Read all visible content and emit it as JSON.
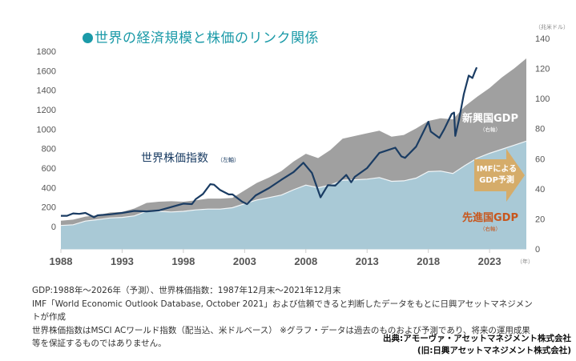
{
  "title": "世界の経済規模と株価のリンク関係",
  "colors": {
    "title": "#1b9aa8",
    "advanced_gdp": "#a9c9d6",
    "emerging_gdp": "#a0a0a0",
    "stock_line": "#1a3c63",
    "forecast_arrow": "#d9a95e",
    "advanced_label": "#c8561c"
  },
  "chart_data": {
    "type": "area",
    "title": "世界の経済規模と株価のリンク関係",
    "xlabel": "（年）",
    "ylabel_left": "",
    "ylabel_right": "（兆米ドル）",
    "x_ticks": [
      "1988",
      "1993",
      "1998",
      "2003",
      "2008",
      "2013",
      "2018",
      "2023"
    ],
    "x_range": [
      1988,
      2026
    ],
    "y_left_ticks": [
      "0",
      "200",
      "400",
      "600",
      "800",
      "1000",
      "1200",
      "1400",
      "1600",
      "1800"
    ],
    "y_left_range": [
      0,
      1800
    ],
    "y_right_ticks": [
      "0",
      "20",
      "40",
      "60",
      "80",
      "100",
      "120",
      "140"
    ],
    "y_right_range": [
      0,
      140
    ],
    "grid": false,
    "gdp_years": [
      1988,
      1989,
      1990,
      1991,
      1992,
      1993,
      1994,
      1995,
      1996,
      1997,
      1998,
      1999,
      2000,
      2001,
      2002,
      2003,
      2004,
      2005,
      2006,
      2007,
      2008,
      2009,
      2010,
      2011,
      2012,
      2013,
      2014,
      2015,
      2016,
      2017,
      2018,
      2019,
      2020,
      2021,
      2022,
      2023,
      2024,
      2025,
      2026
    ],
    "series": [
      {
        "name": "先進国GDP",
        "axis": "right",
        "kind": "stacked-area",
        "values": [
          15.6,
          16.1,
          18.5,
          19.5,
          20.6,
          21.0,
          22.0,
          25.0,
          25.0,
          24.6,
          25.0,
          26.0,
          26.5,
          26.5,
          27.4,
          30.0,
          32.6,
          34.2,
          35.8,
          39.4,
          42.5,
          40.7,
          42.5,
          45.7,
          46.0,
          46.4,
          47.5,
          45.0,
          45.3,
          47.1,
          51.4,
          51.8,
          50.2,
          55.6,
          60.4,
          63.6,
          66.3,
          69.0,
          71.7
        ]
      },
      {
        "name": "新興国GDP",
        "axis": "right",
        "kind": "stacked-area",
        "values": [
          3.2,
          3.4,
          3.0,
          2.9,
          3.6,
          3.6,
          4.9,
          5.6,
          6.4,
          7.1,
          6.4,
          6.3,
          7.0,
          7.0,
          6.5,
          8.9,
          11.3,
          13.3,
          16.0,
          18.8,
          20.8,
          19.7,
          23.3,
          27.6,
          29.1,
          30.5,
          31.2,
          29.7,
          30.5,
          33.0,
          33.7,
          35.1,
          36.0,
          39.4,
          40.9,
          43.4,
          47.7,
          51.0,
          55.0
        ]
      },
      {
        "name": "世界株価指数",
        "axis": "left",
        "kind": "line",
        "x": [
          1988.0,
          1988.5,
          1989.0,
          1989.5,
          1990.0,
          1990.7,
          1991.0,
          1992.0,
          1993.0,
          1994.0,
          1995.0,
          1996.0,
          1997.0,
          1998.0,
          1998.7,
          1999.0,
          1999.6,
          2000.2,
          2000.5,
          2001.0,
          2001.7,
          2002.0,
          2002.8,
          2003.2,
          2003.9,
          2005.0,
          2006.0,
          2007.0,
          2007.8,
          2008.5,
          2009.2,
          2009.8,
          2010.4,
          2011.3,
          2011.7,
          2012.0,
          2013.0,
          2014.0,
          2015.3,
          2015.8,
          2016.1,
          2017.0,
          2018.0,
          2018.2,
          2018.9,
          2019.3,
          2019.9,
          2020.1,
          2020.2,
          2020.5,
          2020.9,
          2021.3,
          2021.6,
          2021.8,
          2021.95
        ],
        "values": [
          110,
          115,
          125,
          130,
          135,
          105,
          115,
          130,
          130,
          160,
          150,
          175,
          200,
          240,
          220,
          280,
          330,
          445,
          430,
          380,
          320,
          330,
          250,
          240,
          320,
          400,
          470,
          560,
          650,
          560,
          300,
          430,
          410,
          530,
          450,
          520,
          600,
          760,
          800,
          720,
          700,
          830,
          1076,
          980,
          900,
          1000,
          1150,
          1180,
          930,
          1100,
          1350,
          1550,
          1520,
          1600,
          1634
        ]
      }
    ],
    "annotations": [
      {
        "text": "世界株価指数",
        "sub": "（左軸）"
      },
      {
        "text": "新興国GDP",
        "sub": "（右軸）"
      },
      {
        "text": "先進国GDP",
        "sub": "（右軸）"
      },
      {
        "text": "IMFによる",
        "text2": "GDP予測"
      }
    ],
    "forecast_start_year": 2021
  },
  "notes": [
    "GDP:1988年～2026年（予測）、世界株価指数：1987年12月末～2021年12月末",
    "IMF「World Economic Outlook Database, October 2021」および信頼できると判断したデータをもとに日興アセットマネジメン",
    "トが作成",
    "世界株価指数はMSCI ACワールド指数（配当込、米ドルベース） ※グラフ・データは過去のものおよび予測であり、将来の運用成果",
    "等を保証するものではありません。"
  ],
  "source": [
    "出典:アモーヴァ・アセットマネジメント株式会社",
    "(旧:日興アセットマネジメント株式会社)"
  ]
}
